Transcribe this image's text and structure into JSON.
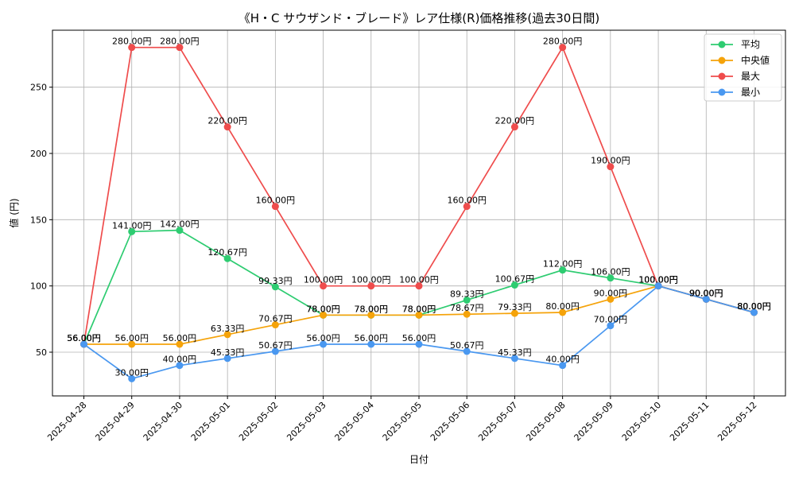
{
  "chart_data": {
    "type": "line",
    "title": "《H・C サウザンド・ブレード》レア仕様(R)価格推移(過去30日間)",
    "xlabel": "日付",
    "ylabel": "値 (円)",
    "x": [
      "2025-04-28",
      "2025-04-29",
      "2025-04-30",
      "2025-05-01",
      "2025-05-02",
      "2025-05-03",
      "2025-05-04",
      "2025-05-05",
      "2025-05-06",
      "2025-05-07",
      "2025-05-08",
      "2025-05-09",
      "2025-05-10",
      "2025-05-11",
      "2025-05-12"
    ],
    "ylim": [
      17,
      293
    ],
    "yticks": [
      50,
      100,
      150,
      200,
      250
    ],
    "grid": true,
    "legend_position": "top-right",
    "value_suffix": "円",
    "series": [
      {
        "name": "平均",
        "color": "#2ecc71",
        "values": [
          56.0,
          141.0,
          142.0,
          120.67,
          99.33,
          78.0,
          78.0,
          78.0,
          89.33,
          100.67,
          112.0,
          106.0,
          100.0,
          90.0,
          80.0
        ]
      },
      {
        "name": "中央値",
        "color": "#f5a30a",
        "values": [
          56.0,
          56.0,
          56.0,
          63.33,
          70.67,
          78.0,
          78.0,
          78.0,
          78.67,
          79.33,
          80.0,
          90.0,
          100.0,
          90.0,
          80.0
        ]
      },
      {
        "name": "最大",
        "color": "#ef4c4c",
        "values": [
          56.0,
          280.0,
          280.0,
          220.0,
          160.0,
          100.0,
          100.0,
          100.0,
          160.0,
          220.0,
          280.0,
          190.0,
          100.0,
          90.0,
          80.0
        ]
      },
      {
        "name": "最小",
        "color": "#4a98f0",
        "values": [
          56.0,
          30.0,
          40.0,
          45.33,
          50.67,
          56.0,
          56.0,
          56.0,
          50.67,
          45.33,
          40.0,
          70.0,
          100.0,
          90.0,
          80.0
        ]
      }
    ]
  }
}
